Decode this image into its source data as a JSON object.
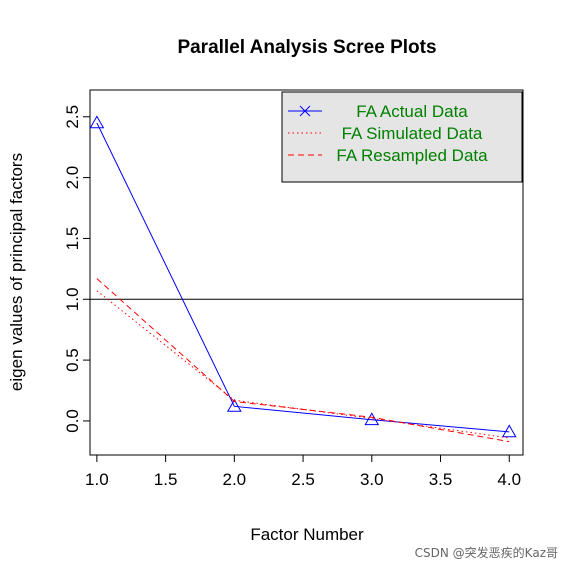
{
  "chart_data": {
    "type": "line",
    "title": "Parallel Analysis Scree Plots",
    "xlabel": "Factor Number",
    "ylabel": "eigen values of principal factors",
    "xlim": [
      0.95,
      4.1
    ],
    "ylim": [
      -0.28,
      2.72
    ],
    "x_ticks": [
      1.0,
      1.5,
      2.0,
      2.5,
      3.0,
      3.5,
      4.0
    ],
    "x_tick_labels": [
      "1.0",
      "1.5",
      "2.0",
      "2.5",
      "3.0",
      "3.5",
      "4.0"
    ],
    "y_ticks": [
      0.0,
      0.5,
      1.0,
      1.5,
      2.0,
      2.5
    ],
    "y_tick_labels": [
      "0.0",
      "0.5",
      "1.0",
      "1.5",
      "2.0",
      "2.5"
    ],
    "reference_line": {
      "y": 1.0,
      "color": "#000000"
    },
    "x": [
      1,
      2,
      3,
      4
    ],
    "series": [
      {
        "name": "FA  Actual Data",
        "values": [
          2.45,
          0.12,
          0.01,
          -0.09
        ],
        "color": "#0000ff",
        "style": "solid",
        "marker": "triangle"
      },
      {
        "name": "FA  Simulated Data",
        "values": [
          1.07,
          0.17,
          0.02,
          -0.14
        ],
        "color": "#ff0000",
        "style": "dotted",
        "marker": "none"
      },
      {
        "name": "FA  Resampled Data",
        "values": [
          1.17,
          0.16,
          0.03,
          -0.17
        ],
        "color": "#ff0000",
        "style": "dashed",
        "marker": "none"
      }
    ],
    "legend": {
      "position": "top-right",
      "background": "#e5e5e5",
      "text_color": "#008000",
      "key_marker": "x"
    },
    "grid": false
  },
  "watermark": "CSDN @突发恶疾的Kaz哥"
}
